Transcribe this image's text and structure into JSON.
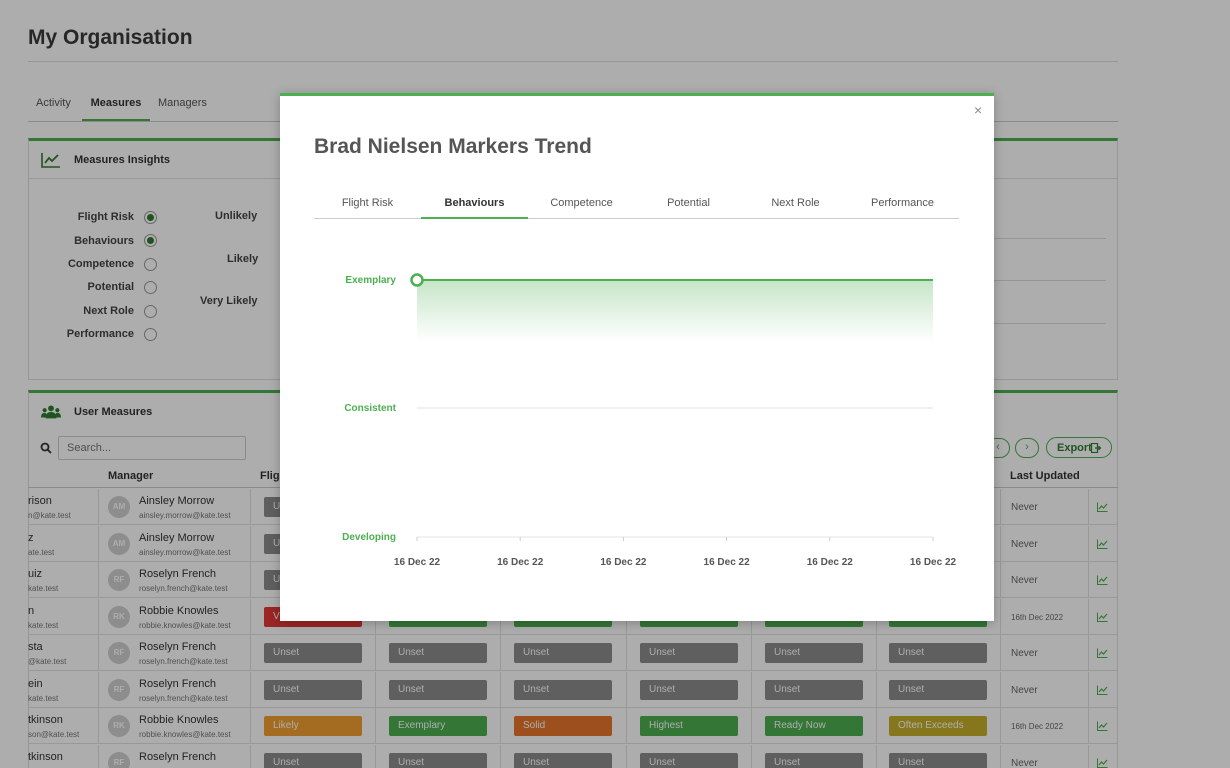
{
  "page": {
    "title": "My Organisation",
    "tabs": [
      "Activity",
      "Measures",
      "Managers"
    ],
    "active_tab": "Measures"
  },
  "insights": {
    "title": "Measures Insights",
    "measures": [
      {
        "label": "Flight Risk",
        "selected": true
      },
      {
        "label": "Behaviours",
        "selected": true
      },
      {
        "label": "Competence",
        "selected": false
      },
      {
        "label": "Potential",
        "selected": false
      },
      {
        "label": "Next Role",
        "selected": false
      },
      {
        "label": "Performance",
        "selected": false
      }
    ],
    "y_labels": [
      "Unlikely",
      "Likely",
      "Very Likely"
    ]
  },
  "user_measures": {
    "title": "User Measures",
    "search_placeholder": "Search...",
    "pager_prev": "‹",
    "pager_next": "›",
    "export_label": "Export",
    "columns": {
      "manager": "Manager",
      "flight": "Flig",
      "last_updated": "Last Updated"
    },
    "rows": [
      {
        "name": "rison",
        "email": "n@kate.test",
        "initials": "AM",
        "manager": "Ainsley Morrow",
        "manager_email": "ainsley.morrow@kate.test",
        "badges": [
          [
            "Un",
            "unset"
          ]
        ],
        "updated": "Never"
      },
      {
        "name": "z",
        "email": "ate.test",
        "initials": "AM",
        "manager": "Ainsley Morrow",
        "manager_email": "ainsley.morrow@kate.test",
        "badges": [
          [
            "Un",
            "unset"
          ]
        ],
        "updated": "Never"
      },
      {
        "name": "uiz",
        "email": "kate.test",
        "initials": "RF",
        "manager": "Roselyn French",
        "manager_email": "roselyn.french@kate.test",
        "badges": [
          [
            "Un",
            "unset"
          ]
        ],
        "updated": "Never"
      },
      {
        "name": "n",
        "email": "kate.test",
        "initials": "RK",
        "manager": "Robbie Knowles",
        "manager_email": "robbie.knowles@kate.test",
        "badges": [
          [
            "V",
            "red"
          ],
          [
            "",
            "green"
          ],
          [
            "",
            "green"
          ],
          [
            "",
            "green"
          ],
          [
            "",
            "green"
          ],
          [
            "",
            "green"
          ]
        ],
        "updated": "16th Dec 2022"
      },
      {
        "name": "sta",
        "email": "@kate.test",
        "initials": "RF",
        "manager": "Roselyn French",
        "manager_email": "roselyn.french@kate.test",
        "badges": [
          [
            "Unset",
            "unset"
          ],
          [
            "Unset",
            "unset"
          ],
          [
            "Unset",
            "unset"
          ],
          [
            "Unset",
            "unset"
          ],
          [
            "Unset",
            "unset"
          ],
          [
            "Unset",
            "unset"
          ]
        ],
        "updated": "Never"
      },
      {
        "name": "ein",
        "email": "kate.test",
        "initials": "RF",
        "manager": "Roselyn French",
        "manager_email": "roselyn.french@kate.test",
        "badges": [
          [
            "Unset",
            "unset"
          ],
          [
            "Unset",
            "unset"
          ],
          [
            "Unset",
            "unset"
          ],
          [
            "Unset",
            "unset"
          ],
          [
            "Unset",
            "unset"
          ],
          [
            "Unset",
            "unset"
          ]
        ],
        "updated": "Never"
      },
      {
        "name": "tkinson",
        "email": "son@kate.test",
        "initials": "RK",
        "manager": "Robbie Knowles",
        "manager_email": "robbie.knowles@kate.test",
        "badges": [
          [
            "Likely",
            "likely"
          ],
          [
            "Exemplary",
            "green"
          ],
          [
            "Solid",
            "solid"
          ],
          [
            "Highest",
            "green"
          ],
          [
            "Ready Now",
            "green"
          ],
          [
            "Often Exceeds",
            "olive"
          ]
        ],
        "updated": "16th Dec 2022"
      },
      {
        "name": "tkinson",
        "email": "",
        "initials": "RF",
        "manager": "Roselyn French",
        "manager_email": "",
        "badges": [
          [
            "Unset",
            "unset"
          ],
          [
            "Unset",
            "unset"
          ],
          [
            "Unset",
            "unset"
          ],
          [
            "Unset",
            "unset"
          ],
          [
            "Unset",
            "unset"
          ],
          [
            "Unset",
            "unset"
          ]
        ],
        "updated": "Never"
      }
    ]
  },
  "modal": {
    "title": "Brad Nielsen Markers Trend",
    "close_glyph": "×",
    "tabs": [
      "Flight Risk",
      "Behaviours",
      "Competence",
      "Potential",
      "Next Role",
      "Performance"
    ],
    "active_tab": "Behaviours"
  },
  "colors": {
    "accent": "#4caf50",
    "accent_dark": "#2e7d32"
  },
  "chart_data": {
    "type": "area",
    "title": "",
    "categories": [
      "16 Dec 22",
      "16 Dec 22",
      "16 Dec 22",
      "16 Dec 22",
      "16 Dec 22",
      "16 Dec 22"
    ],
    "y_levels": [
      "Developing",
      "Consistent",
      "Exemplary"
    ],
    "series": [
      {
        "values": [
          "Exemplary",
          "Exemplary",
          "Exemplary",
          "Exemplary",
          "Exemplary",
          "Exemplary"
        ]
      }
    ],
    "highlight_index": 0,
    "grid": true
  }
}
